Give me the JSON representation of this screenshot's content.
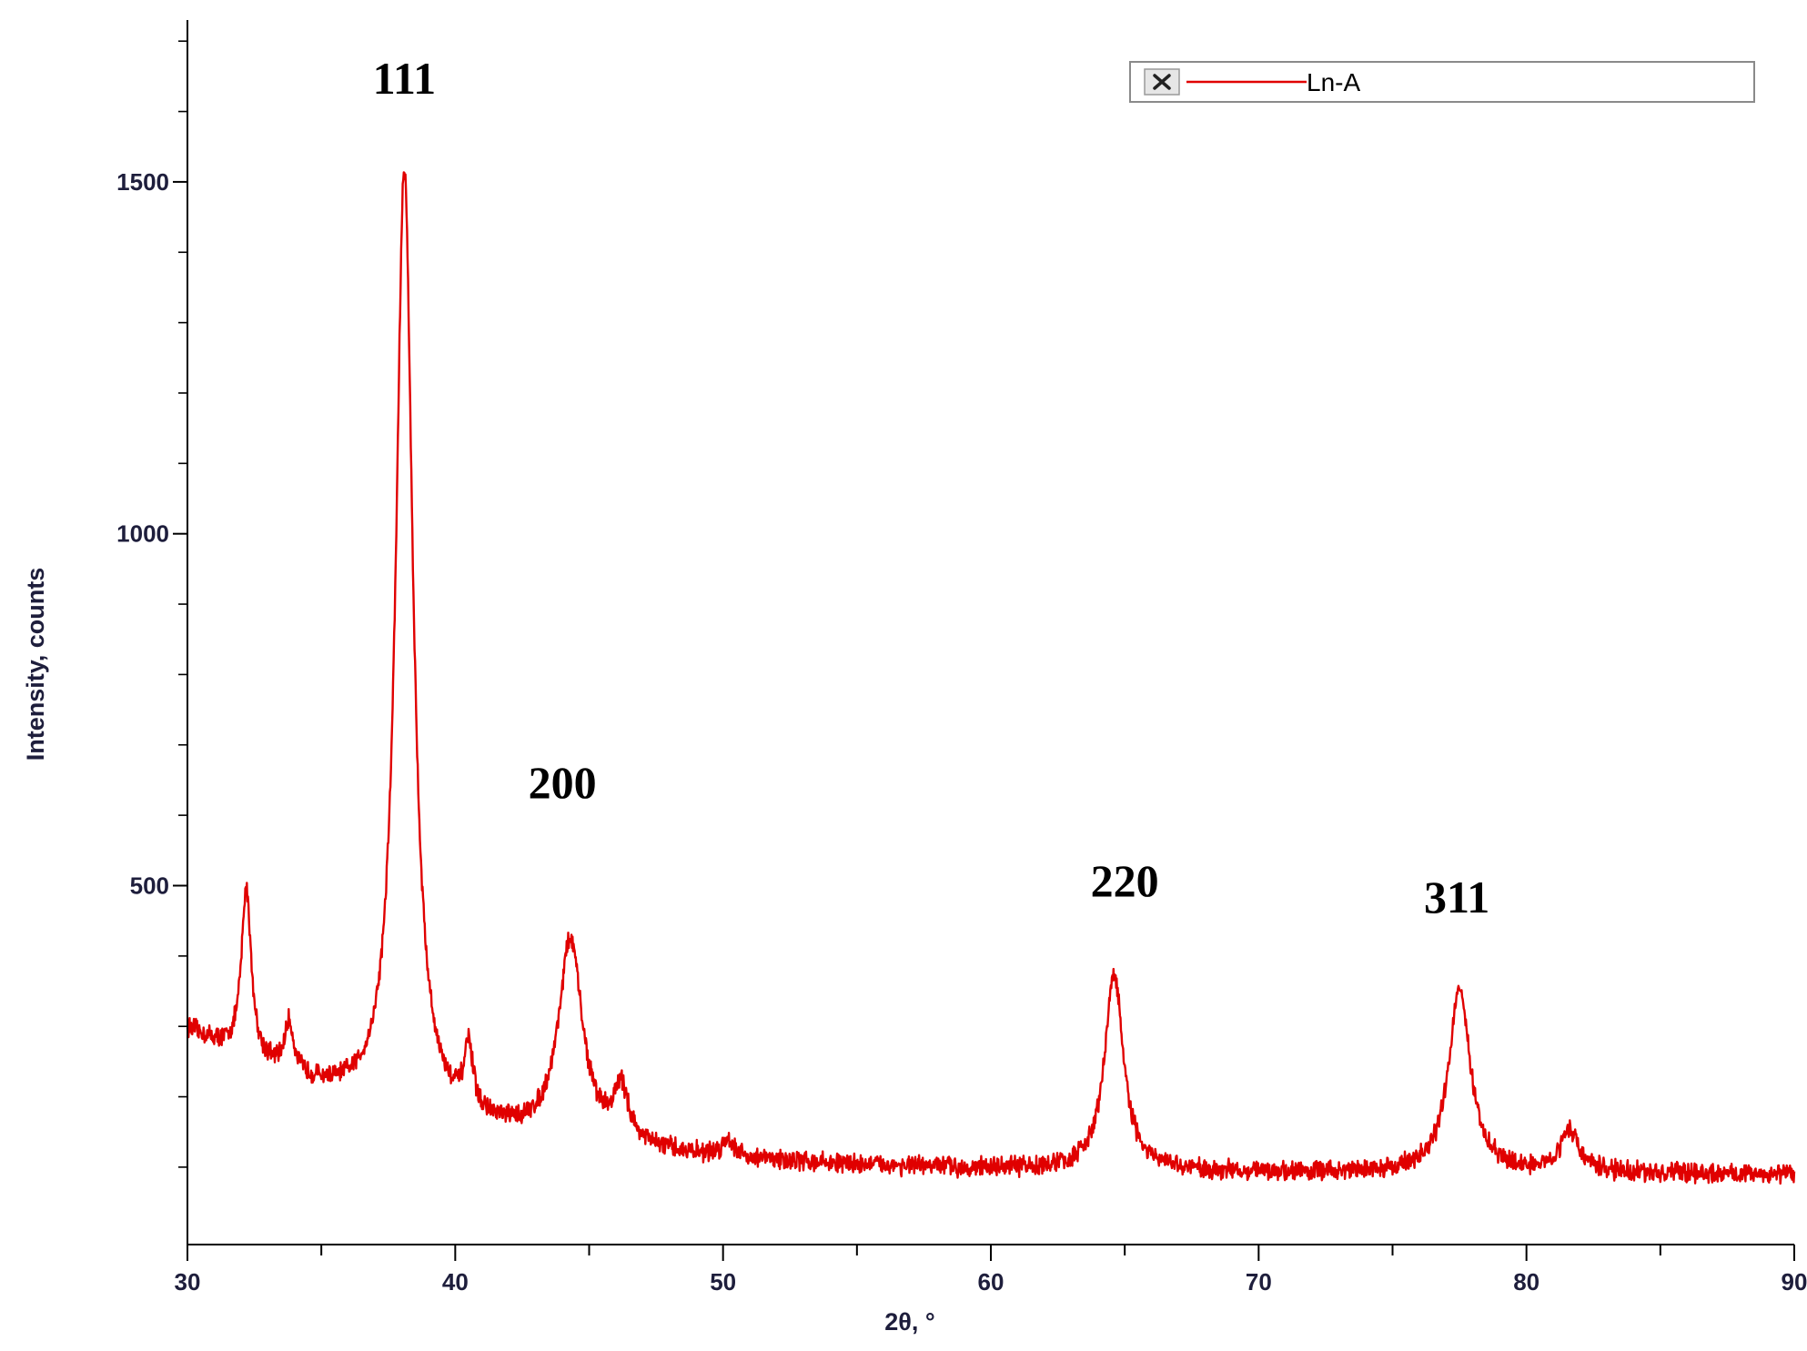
{
  "chart_data": {
    "type": "line",
    "title": "",
    "xlabel": "2θ, °",
    "ylabel": "Intensity, counts",
    "xlim": [
      30,
      90
    ],
    "ylim": [
      -10,
      1730
    ],
    "x_ticks": [
      30,
      40,
      50,
      60,
      70,
      80,
      90
    ],
    "x_tick_labels": [
      "30",
      "40",
      "50",
      "60",
      "70",
      "80",
      "90"
    ],
    "x_minor_ticks": [
      35,
      45,
      55,
      65,
      75,
      85
    ],
    "y_ticks": [
      500,
      1000,
      1500
    ],
    "y_tick_labels": [
      "500",
      "1000",
      "1500"
    ],
    "y_minor_ticks": [
      100,
      200,
      300,
      400,
      600,
      700,
      800,
      900,
      1100,
      1200,
      1300,
      1400,
      1600,
      1700
    ],
    "grid": false,
    "legend": {
      "position": "top-right",
      "entries": [
        "Ln-A"
      ],
      "color": "#e00000"
    },
    "series": [
      {
        "name": "Ln-A",
        "color": "#e00000",
        "background": {
          "from_x": 30,
          "to_x": 90,
          "start": 295,
          "end": 90,
          "decay": 9
        },
        "noise": 11,
        "peaks": [
          {
            "x": 32.2,
            "height": 240,
            "width": 0.22
          },
          {
            "x": 33.8,
            "height": 70,
            "width": 0.2
          },
          {
            "x": 38.1,
            "height": 1340,
            "width": 0.38
          },
          {
            "x": 40.5,
            "height": 90,
            "width": 0.2
          },
          {
            "x": 44.3,
            "height": 285,
            "width": 0.55
          },
          {
            "x": 46.2,
            "height": 75,
            "width": 0.35
          },
          {
            "x": 50.2,
            "height": 25,
            "width": 0.25
          },
          {
            "x": 64.6,
            "height": 280,
            "width": 0.42
          },
          {
            "x": 77.5,
            "height": 265,
            "width": 0.48
          },
          {
            "x": 81.6,
            "height": 60,
            "width": 0.42
          }
        ]
      }
    ],
    "annotations": [
      {
        "text": "111",
        "x": 38.1,
        "y": 1625
      },
      {
        "text": "200",
        "x": 44.0,
        "y": 625
      },
      {
        "text": "220",
        "x": 65.0,
        "y": 485
      },
      {
        "text": "311",
        "x": 77.4,
        "y": 462
      }
    ]
  }
}
